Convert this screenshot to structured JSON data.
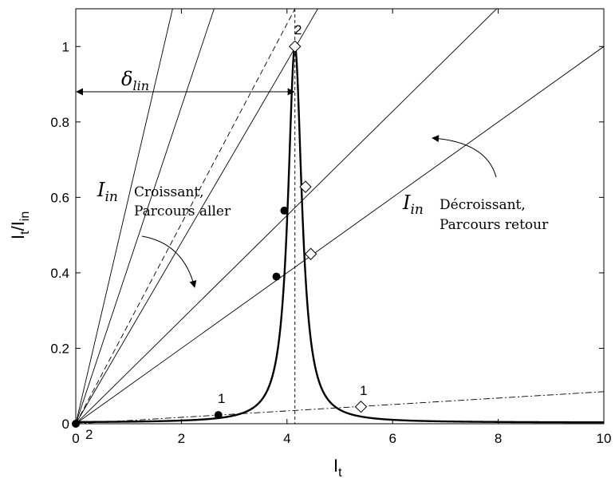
{
  "chart_data": {
    "type": "line",
    "xlabel": "I",
    "xlabel_sub": "t",
    "ylabel": "I",
    "ylabel_sub_t": "t",
    "ylabel_sep": "/I",
    "ylabel_sub_in": "in",
    "xlim": [
      0,
      10
    ],
    "ylim": [
      0,
      1.1
    ],
    "x_ticks": [
      0,
      2,
      4,
      6,
      8,
      10
    ],
    "y_ticks": [
      0,
      0.2,
      0.4,
      0.6,
      0.8,
      1
    ],
    "x_tick_labels": [
      "0",
      "2",
      "4",
      "6",
      "8",
      "10"
    ],
    "y_tick_labels": [
      "0",
      "0.2",
      "0.4",
      "0.6",
      "0.8",
      "1"
    ],
    "grid": false,
    "resonance": {
      "center": 4.15,
      "width": 0.16,
      "baseline": 0.003
    },
    "solid_lines_slopes": [
      0.42,
      0.24,
      0.1,
      0.138,
      0.6
    ],
    "dashed_line_slope": 0.265,
    "dashdot_line_slope": 0.0085,
    "vertical_dashed_x": 4.15,
    "filled_points": [
      {
        "x": 2.7,
        "y": 0.023,
        "label": "1"
      },
      {
        "x": 3.8,
        "y": 0.39,
        "label": ""
      },
      {
        "x": 3.95,
        "y": 0.565,
        "label": ""
      }
    ],
    "open_points": [
      {
        "x": 4.15,
        "y": 1.0,
        "label": "2"
      },
      {
        "x": 4.35,
        "y": 0.628,
        "label": ""
      },
      {
        "x": 4.45,
        "y": 0.45,
        "label": ""
      },
      {
        "x": 5.4,
        "y": 0.045,
        "label": "1"
      }
    ],
    "origin_point_label": "2",
    "delta_label": "δ",
    "delta_sub": "lin",
    "delta_y": 0.88,
    "annotation_left": {
      "math": "I",
      "math_sub": "in",
      "line1": "Croissant,",
      "line2": "Parcours aller"
    },
    "annotation_right": {
      "math": "I",
      "math_sub": "in",
      "line1": "Décroissant,",
      "line2": "Parcours retour"
    }
  }
}
